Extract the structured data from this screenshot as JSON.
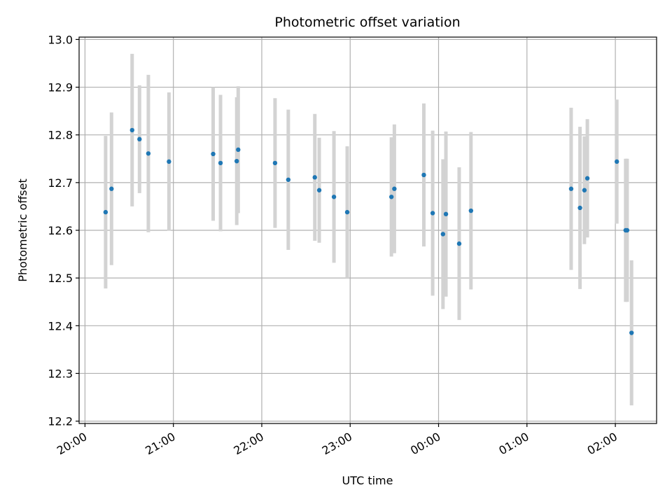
{
  "chart_data": {
    "type": "scatter",
    "title": "Photometric offset variation",
    "xlabel": "UTC time",
    "ylabel": "Photometric offset",
    "x_tick_labels": [
      "20:00",
      "21:00",
      "22:00",
      "23:00",
      "00:00",
      "01:00",
      "02:00"
    ],
    "y_ticks": [
      "12.2",
      "12.3",
      "12.4",
      "12.5",
      "12.6",
      "12.7",
      "12.8",
      "12.9",
      "13.0"
    ],
    "ylim": [
      12.195,
      13.005
    ],
    "xlim": [
      "19:56",
      "02:28"
    ],
    "grid": true,
    "marker_color": "#1f77b4",
    "errorbar_color": "#d3d3d3",
    "series": [
      {
        "x": [
          "20:14",
          "20:18",
          "20:32",
          "20:37",
          "20:43",
          "20:57",
          "21:27",
          "21:32",
          "21:43",
          "21:44",
          "22:09",
          "22:18",
          "22:36",
          "22:39",
          "22:49",
          "22:58",
          "23:28",
          "23:30",
          "23:50",
          "23:56",
          "00:03",
          "00:05",
          "00:14",
          "00:22",
          "01:30",
          "01:36",
          "01:39",
          "01:41",
          "02:01",
          "02:07",
          "02:08",
          "02:11"
        ],
        "y": [
          12.638,
          12.687,
          12.81,
          12.791,
          12.761,
          12.744,
          12.76,
          12.741,
          12.745,
          12.769,
          12.741,
          12.706,
          12.711,
          12.684,
          12.67,
          12.638,
          12.67,
          12.687,
          12.716,
          12.636,
          12.592,
          12.634,
          12.572,
          12.641,
          12.687,
          12.647,
          12.684,
          12.709,
          12.744,
          12.6,
          12.6,
          12.385
        ],
        "yerr_low": [
          0.16,
          0.16,
          0.16,
          0.113,
          0.165,
          0.145,
          0.14,
          0.143,
          0.134,
          0.133,
          0.136,
          0.147,
          0.133,
          0.11,
          0.138,
          0.138,
          0.125,
          0.135,
          0.15,
          0.173,
          0.157,
          0.173,
          0.16,
          0.165,
          0.17,
          0.17,
          0.113,
          0.124,
          0.13,
          0.15,
          0.15,
          0.152
        ],
        "yerr_high": [
          0.16,
          0.16,
          0.16,
          0.113,
          0.165,
          0.145,
          0.14,
          0.143,
          0.134,
          0.133,
          0.136,
          0.147,
          0.133,
          0.11,
          0.138,
          0.138,
          0.125,
          0.135,
          0.15,
          0.173,
          0.157,
          0.173,
          0.16,
          0.165,
          0.17,
          0.17,
          0.113,
          0.124,
          0.13,
          0.15,
          0.15,
          0.152
        ]
      }
    ]
  }
}
